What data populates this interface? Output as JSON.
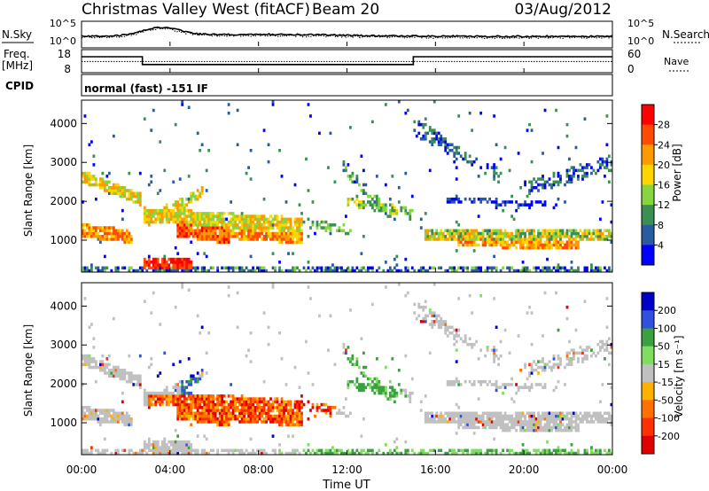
{
  "header": {
    "station": "Christmas Valley West (fitACF)",
    "beam": "Beam 20",
    "date": "03/Aug/2012"
  },
  "noise_panel": {
    "left_label": "N.Sky",
    "right_label": "N.Search",
    "left_ticks": [
      "10^5",
      "10^0"
    ],
    "right_ticks": [
      "10^5",
      "10^0"
    ]
  },
  "freq_panel": {
    "left_label_1": "Freq.",
    "left_label_2": "[MHz]",
    "right_label": "Nave",
    "left_ticks": [
      "18",
      "8"
    ],
    "right_ticks": [
      "60",
      "0"
    ]
  },
  "cpid": {
    "label": "CPID",
    "mode": "normal (fast) -151 IF"
  },
  "chart_data": [
    {
      "type": "heatmap",
      "name": "power",
      "ylabel": "Slant Range [km]",
      "ylim": [
        180,
        4600
      ],
      "yticks": [
        "1000",
        "2000",
        "3000",
        "4000"
      ],
      "colorbar": {
        "label": "Power [dB]",
        "ticks": [
          "28",
          "24",
          "20",
          "16",
          "12",
          "8",
          "4"
        ],
        "colors": [
          "#ff0000",
          "#ff4c00",
          "#ff9900",
          "#ffd500",
          "#86d640",
          "#3b8f52",
          "#2a5aa0",
          "#0000ff"
        ]
      }
    },
    {
      "type": "heatmap",
      "name": "velocity",
      "ylabel": "Slant Range [km]",
      "ylim": [
        180,
        4600
      ],
      "yticks": [
        "1000",
        "2000",
        "3000",
        "4000"
      ],
      "colorbar": {
        "label": "Velocity [m s⁻¹]",
        "ticks": [
          "200",
          "100",
          "50",
          "15",
          "-15",
          "-50",
          "-100",
          "-200"
        ],
        "colors": [
          "#0000c8",
          "#3050e0",
          "#3aa040",
          "#80dd60",
          "#c0c0c0",
          "#ffb000",
          "#ff7000",
          "#ff3000",
          "#e00000"
        ]
      }
    },
    {
      "type": "line",
      "name": "time_axis",
      "xlabel": "Time UT",
      "xticks": [
        "00:00",
        "04:00",
        "08:00",
        "12:00",
        "16:00",
        "20:00",
        "00:00"
      ],
      "xlim": [
        0,
        24
      ]
    }
  ]
}
